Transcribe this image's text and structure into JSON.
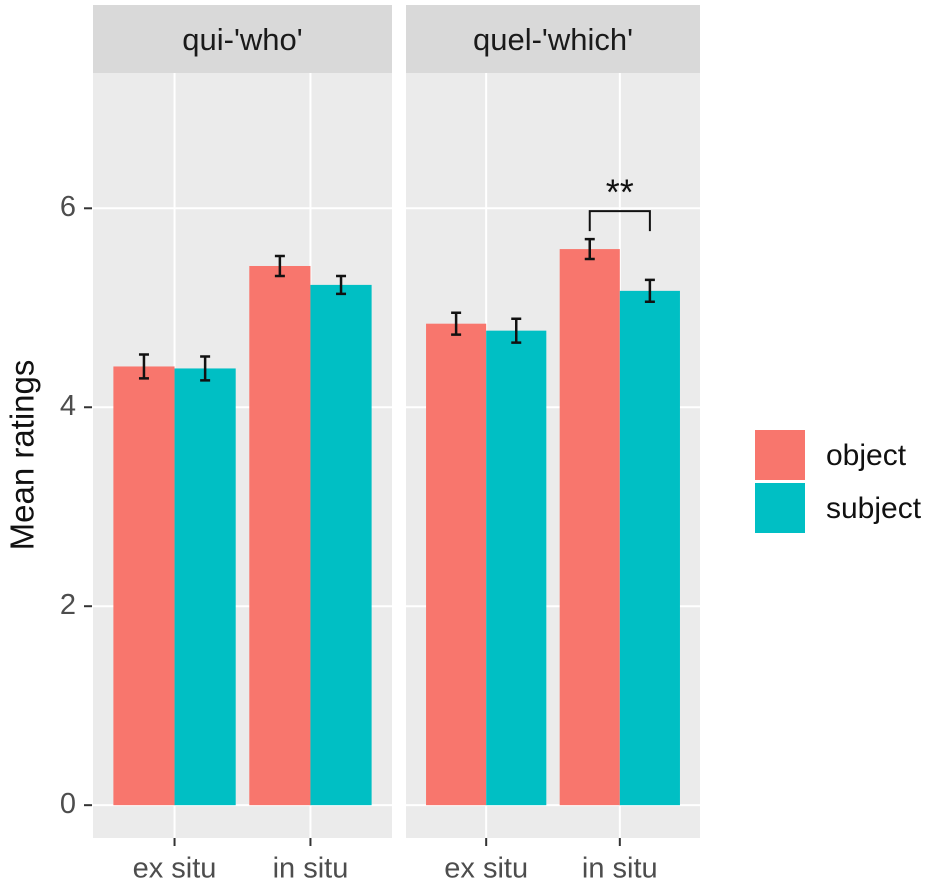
{
  "chart_data": [
    {
      "type": "bar",
      "title": "qui-'who'",
      "ylabel": "Mean ratings",
      "categories": [
        "ex situ",
        "in situ"
      ],
      "series": [
        {
          "name": "object",
          "color": "#F8766D",
          "values": [
            4.41,
            5.42
          ],
          "errors": [
            0.12,
            0.1
          ]
        },
        {
          "name": "subject",
          "color": "#00BFC4",
          "values": [
            4.39,
            5.23
          ],
          "errors": [
            0.12,
            0.09
          ]
        }
      ],
      "ylim": [
        -0.33,
        7.36
      ],
      "yticks": [
        0,
        2,
        4,
        6
      ],
      "grid": true
    },
    {
      "type": "bar",
      "title": "quel-'which'",
      "categories": [
        "ex situ",
        "in situ"
      ],
      "series": [
        {
          "name": "object",
          "color": "#F8766D",
          "values": [
            4.84,
            5.59
          ],
          "errors": [
            0.11,
            0.1
          ]
        },
        {
          "name": "subject",
          "color": "#00BFC4",
          "values": [
            4.77,
            5.17
          ],
          "errors": [
            0.12,
            0.11
          ]
        }
      ],
      "annotation": "**",
      "ylim": [
        -0.33,
        7.36
      ],
      "yticks": [
        0,
        2,
        4,
        6
      ],
      "grid": true
    }
  ]
}
